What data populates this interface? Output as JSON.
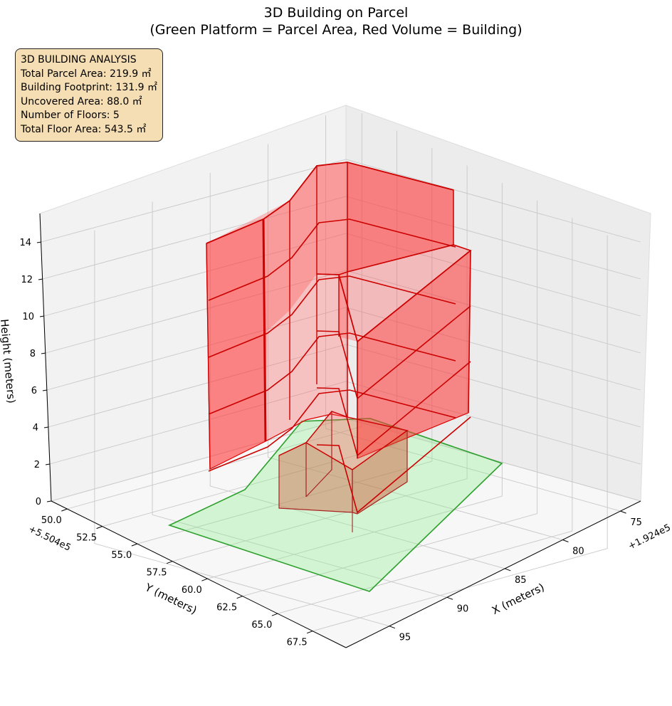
{
  "chart_data": {
    "type": "3d-polygon",
    "title": "3D Building on Parcel",
    "subtitle": "(Green Platform = Parcel Area, Red Volume = Building)",
    "xlabel": "X (meters)",
    "ylabel": "Y (meters)",
    "zlabel": "Height (meters)",
    "x_offset_label": "+1.924e5",
    "y_offset_label": "+5.504e5",
    "x_ticks": [
      "75",
      "80",
      "85",
      "90",
      "95"
    ],
    "y_ticks": [
      "50.0",
      "52.5",
      "55.0",
      "57.5",
      "60.0",
      "62.5",
      "65.0",
      "67.5"
    ],
    "z_ticks": [
      "0",
      "2",
      "4",
      "6",
      "8",
      "10",
      "12",
      "14"
    ],
    "grid": true,
    "parcel_color": "#2ca02c",
    "parcel_fill": "#90ee90",
    "building_color": "#dd0000",
    "building_fill": "#ff3333"
  },
  "info": {
    "title": "3D BUILDING ANALYSIS",
    "lines": [
      "Total Parcel Area: 219.9 ㎡",
      "Building Footprint: 131.9 ㎡",
      "Uncovered Area: 88.0 ㎡",
      "Number of Floors: 5",
      "Total Floor Area: 543.5 ㎡"
    ]
  }
}
